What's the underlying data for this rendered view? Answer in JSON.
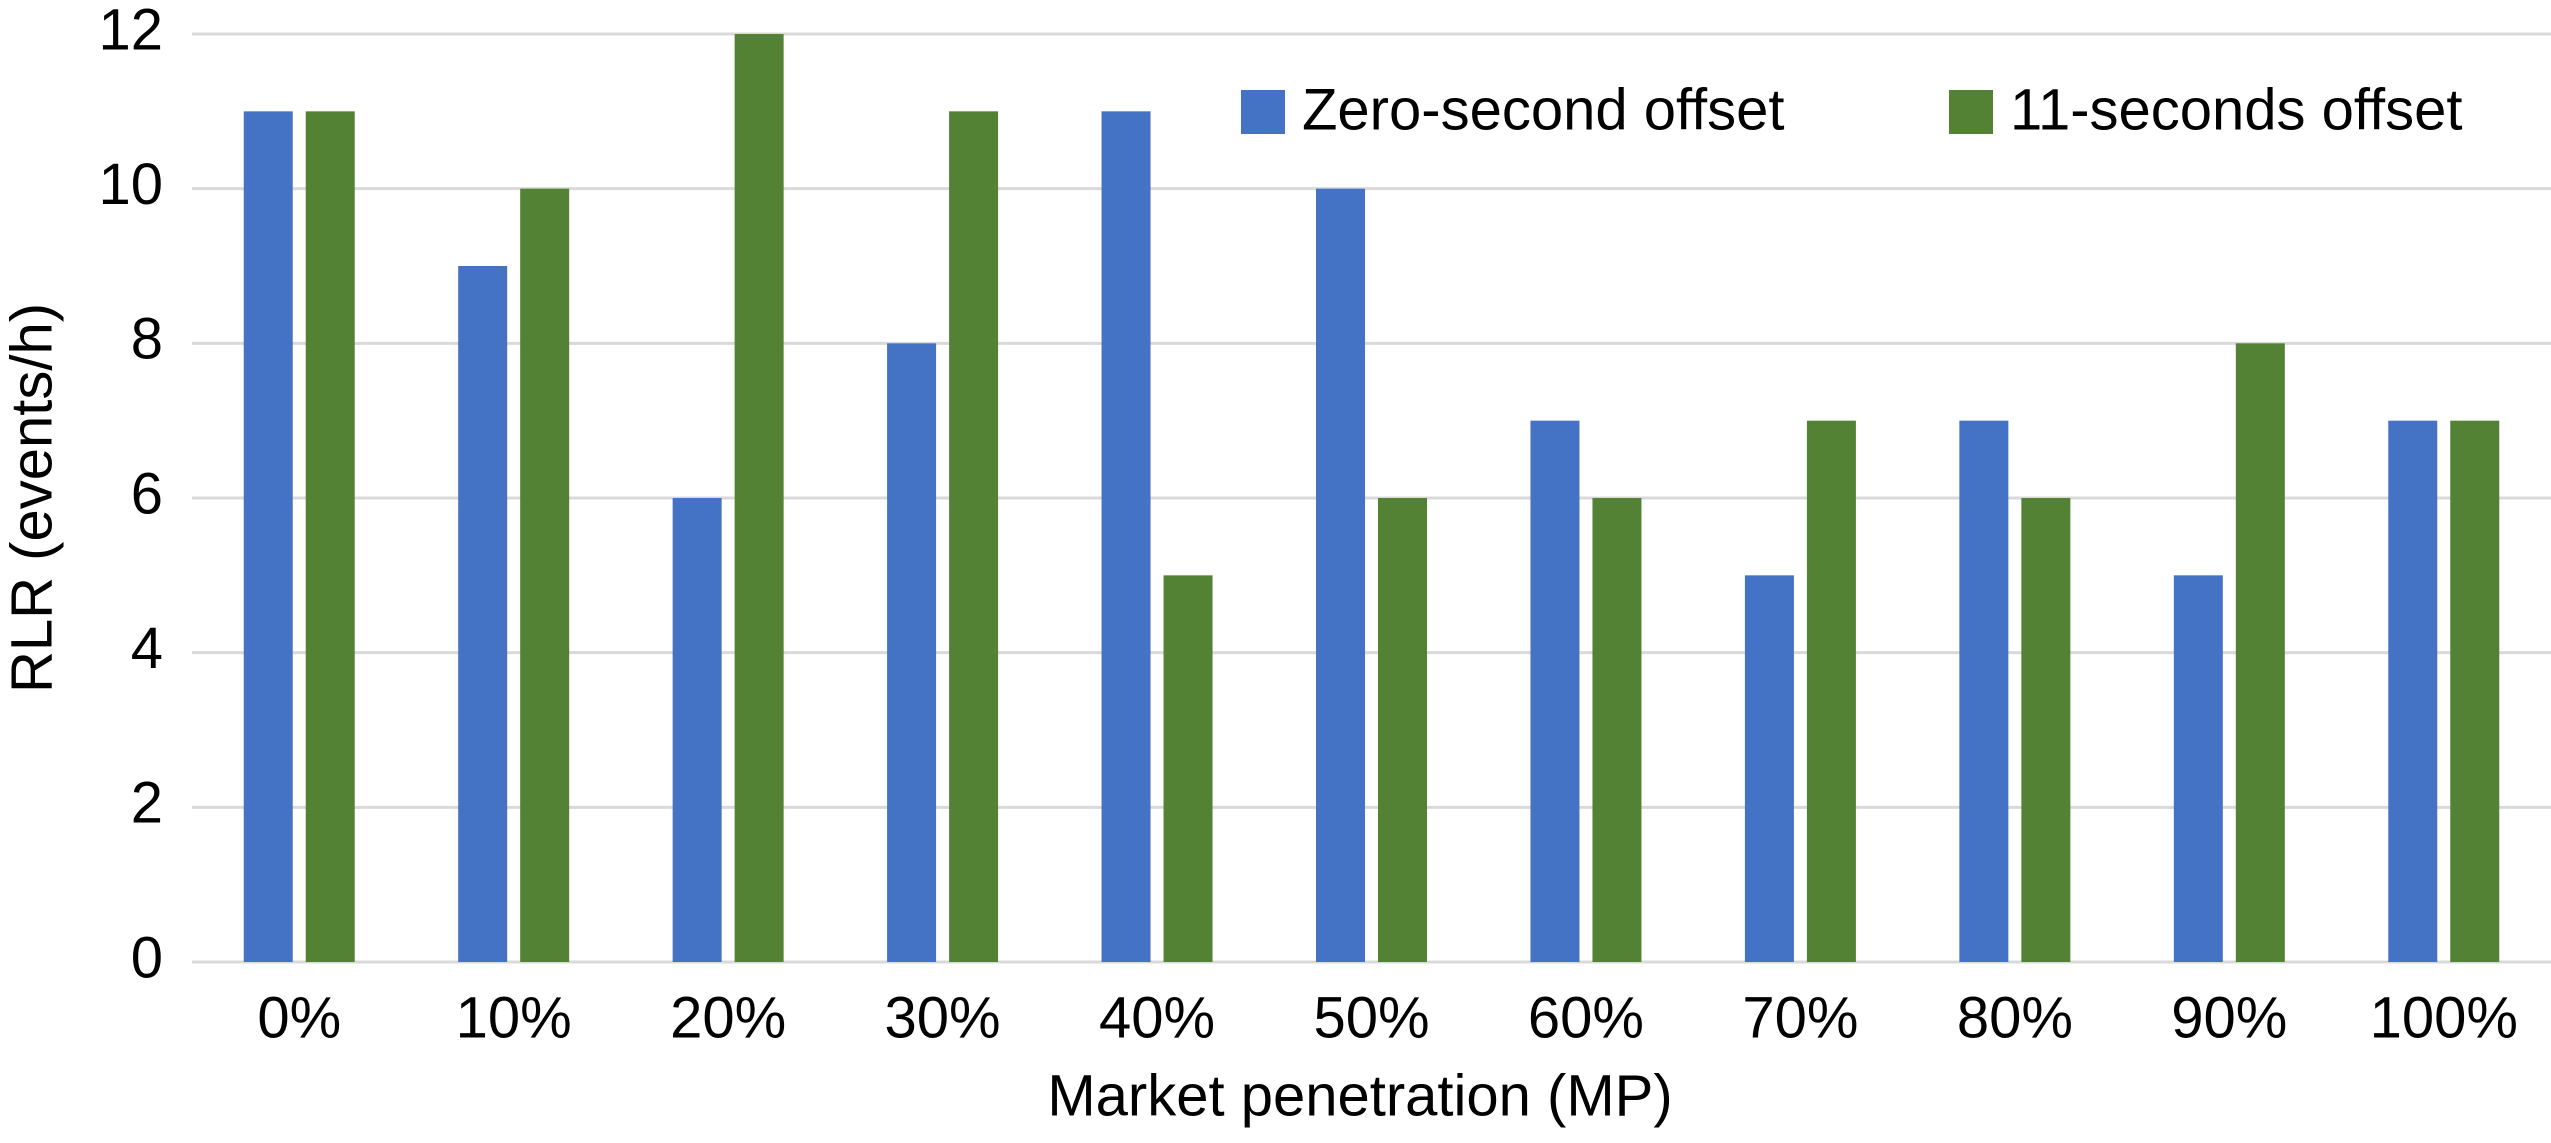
{
  "chart_data": {
    "type": "bar",
    "x_label": "Market penetration (MP)",
    "y_label": "RLR (events/h)",
    "categories": [
      "0%",
      "10%",
      "20%",
      "30%",
      "40%",
      "50%",
      "60%",
      "70%",
      "80%",
      "90%",
      "100%"
    ],
    "series": [
      {
        "name": "Zero-second offset",
        "color": "#4472c4",
        "values": [
          11,
          9,
          6,
          8,
          11,
          10,
          7,
          5,
          7,
          5,
          7
        ]
      },
      {
        "name": "11-seconds offset",
        "color": "#548235",
        "values": [
          11,
          10,
          12,
          11,
          5,
          6,
          6,
          7,
          6,
          8,
          7
        ]
      }
    ],
    "ylim": [
      0,
      12
    ],
    "yticks": [
      0,
      2,
      4,
      6,
      8,
      10,
      12
    ],
    "grid": true,
    "legend": "top-right"
  }
}
